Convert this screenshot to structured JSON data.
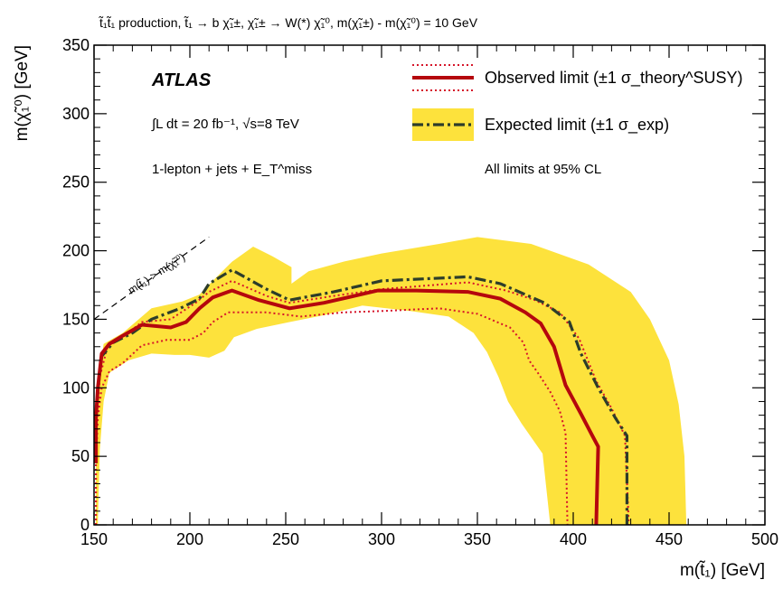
{
  "header": {
    "process": "t̃₁t̃₁ production, t̃₁ → b χ̃₁±, χ̃₁± → W(*) χ̃₁⁰, m(χ̃₁±) - m(χ̃₁⁰) = 10 GeV"
  },
  "colors": {
    "observed": "#b5070d",
    "observed_band": "#d6152a",
    "expected": "#2d3d2a",
    "expected_band": "#fde23c",
    "kinematic_line": "#000000"
  },
  "chart_data": {
    "type": "line",
    "title": "",
    "xlabel": "m(t̃₁) [GeV]",
    "ylabel": "m(χ̃₁⁰) [GeV]",
    "xlim": [
      150,
      500
    ],
    "ylim": [
      0,
      350
    ],
    "x_ticks": [
      150,
      200,
      250,
      300,
      350,
      400,
      450,
      500
    ],
    "y_ticks": [
      0,
      50,
      100,
      150,
      200,
      250,
      300,
      350
    ],
    "grid": false,
    "legend_position": "top-right",
    "labels": {
      "experiment": "ATLAS",
      "luminosity": "∫L dt = 20 fb⁻¹, √s=8 TeV",
      "channel": "1-lepton + jets + E_T^miss",
      "cl_note": "All limits at 95% CL",
      "kinematic_boundary": "m(t̃₁) > m(χ̃₁⁰)"
    },
    "legend": [
      {
        "series": "observed",
        "label": "Observed limit (±1 σ_theory^SUSY)"
      },
      {
        "series": "expected",
        "label": "Expected limit (±1 σ_exp)"
      }
    ],
    "series": [
      {
        "name": "Observed limit",
        "style": "solid",
        "points": [
          [
            151,
            45
          ],
          [
            151,
            78
          ],
          [
            152,
            100
          ],
          [
            154,
            125
          ],
          [
            158,
            132
          ],
          [
            165,
            138
          ],
          [
            175,
            146
          ],
          [
            190,
            144
          ],
          [
            198,
            148
          ],
          [
            205,
            158
          ],
          [
            212,
            166
          ],
          [
            222,
            171
          ],
          [
            236,
            164
          ],
          [
            252,
            158
          ],
          [
            270,
            162
          ],
          [
            298,
            171
          ],
          [
            318,
            171
          ],
          [
            345,
            170
          ],
          [
            362,
            165
          ],
          [
            375,
            155
          ],
          [
            383,
            147
          ],
          [
            390,
            130
          ],
          [
            396,
            102
          ],
          [
            404,
            81
          ],
          [
            410,
            65
          ],
          [
            413,
            57
          ],
          [
            412,
            0
          ]
        ]
      },
      {
        "name": "Observed limit +1σ theory",
        "style": "dotted",
        "points": [
          [
            151,
            0
          ],
          [
            151,
            65
          ],
          [
            153,
            108
          ],
          [
            157,
            130
          ],
          [
            165,
            137
          ],
          [
            175,
            148
          ],
          [
            190,
            150
          ],
          [
            203,
            162
          ],
          [
            210,
            170
          ],
          [
            222,
            178
          ],
          [
            240,
            167
          ],
          [
            252,
            162
          ],
          [
            275,
            167
          ],
          [
            300,
            172
          ],
          [
            345,
            177
          ],
          [
            365,
            171
          ],
          [
            380,
            164
          ],
          [
            393,
            155
          ],
          [
            403,
            136
          ],
          [
            412,
            105
          ],
          [
            420,
            85
          ],
          [
            427,
            65
          ],
          [
            429,
            0
          ]
        ]
      },
      {
        "name": "Observed limit -1σ theory",
        "style": "dotted",
        "points": [
          [
            151,
            0
          ],
          [
            151,
            45
          ],
          [
            152,
            78
          ],
          [
            154,
            100
          ],
          [
            158,
            112
          ],
          [
            165,
            118
          ],
          [
            175,
            131
          ],
          [
            188,
            135
          ],
          [
            200,
            135
          ],
          [
            207,
            140
          ],
          [
            212,
            148
          ],
          [
            220,
            155
          ],
          [
            240,
            155
          ],
          [
            258,
            152
          ],
          [
            280,
            155
          ],
          [
            300,
            156
          ],
          [
            330,
            158
          ],
          [
            350,
            154
          ],
          [
            367,
            144
          ],
          [
            374,
            133
          ],
          [
            377,
            120
          ],
          [
            382,
            110
          ],
          [
            388,
            97
          ],
          [
            393,
            83
          ],
          [
            396,
            67
          ],
          [
            397,
            0
          ]
        ]
      },
      {
        "name": "Expected limit",
        "style": "dashed",
        "points": [
          [
            151,
            45
          ],
          [
            151,
            75
          ],
          [
            152,
            100
          ],
          [
            154,
            123
          ],
          [
            160,
            133
          ],
          [
            170,
            140
          ],
          [
            180,
            150
          ],
          [
            195,
            158
          ],
          [
            205,
            165
          ],
          [
            210,
            176
          ],
          [
            222,
            186
          ],
          [
            240,
            172
          ],
          [
            252,
            164
          ],
          [
            275,
            170
          ],
          [
            300,
            178
          ],
          [
            345,
            181
          ],
          [
            362,
            176
          ],
          [
            375,
            168
          ],
          [
            385,
            162
          ],
          [
            398,
            148
          ],
          [
            404,
            125
          ],
          [
            413,
            100
          ],
          [
            422,
            78
          ],
          [
            428,
            65
          ],
          [
            428,
            0
          ]
        ]
      },
      {
        "name": "Expected limit ±1σ band",
        "style": "band",
        "points": [
          [
            151,
            0
          ],
          [
            151,
            58
          ],
          [
            152,
            100
          ],
          [
            155,
            132
          ],
          [
            165,
            140
          ],
          [
            180,
            158
          ],
          [
            196,
            163
          ],
          [
            205,
            168
          ],
          [
            212,
            178
          ],
          [
            222,
            192
          ],
          [
            233,
            203
          ],
          [
            243,
            196
          ],
          [
            253,
            188
          ],
          [
            253,
            176
          ],
          [
            262,
            185
          ],
          [
            280,
            192
          ],
          [
            300,
            198
          ],
          [
            330,
            205
          ],
          [
            350,
            210
          ],
          [
            378,
            205
          ],
          [
            408,
            190
          ],
          [
            430,
            170
          ],
          [
            440,
            150
          ],
          [
            450,
            120
          ],
          [
            455,
            88
          ],
          [
            458,
            50
          ],
          [
            459,
            0
          ],
          [
            388,
            0
          ],
          [
            384,
            52
          ],
          [
            373,
            74
          ],
          [
            366,
            90
          ],
          [
            361,
            108
          ],
          [
            355,
            126
          ],
          [
            348,
            140
          ],
          [
            335,
            152
          ],
          [
            315,
            156
          ],
          [
            290,
            160
          ],
          [
            270,
            153
          ],
          [
            252,
            148
          ],
          [
            235,
            143
          ],
          [
            223,
            137
          ],
          [
            218,
            127
          ],
          [
            210,
            122
          ],
          [
            200,
            124
          ],
          [
            192,
            124
          ],
          [
            180,
            125
          ],
          [
            168,
            120
          ],
          [
            158,
            111
          ],
          [
            155,
            90
          ],
          [
            153,
            55
          ],
          [
            152,
            0
          ]
        ]
      }
    ]
  }
}
